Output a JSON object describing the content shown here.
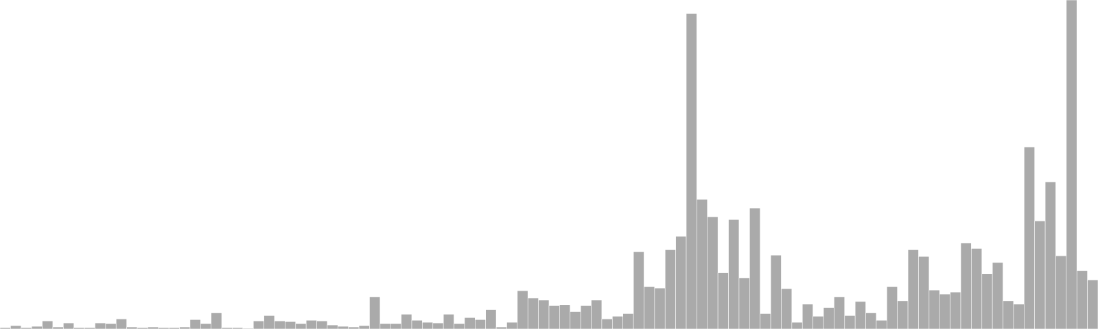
{
  "chart_data": {
    "type": "bar",
    "values": [
      2,
      5,
      2,
      4,
      12,
      3,
      9,
      2,
      2,
      9,
      8,
      15,
      3,
      2,
      3,
      2,
      2,
      3,
      14,
      8,
      24,
      2,
      2,
      1,
      12,
      20,
      12,
      11,
      8,
      13,
      12,
      6,
      4,
      3,
      5,
      48,
      8,
      8,
      22,
      13,
      10,
      9,
      22,
      8,
      17,
      14,
      29,
      3,
      10,
      57,
      46,
      43,
      35,
      36,
      26,
      35,
      43,
      15,
      19,
      23,
      115,
      63,
      61,
      118,
      138,
      470,
      193,
      167,
      84,
      163,
      76,
      180,
      23,
      110,
      60,
      10,
      37,
      19,
      32,
      48,
      20,
      41,
      24,
      13,
      63,
      42,
      118,
      108,
      58,
      52,
      55,
      128,
      120,
      82,
      99,
      42,
      37,
      271,
      161,
      219,
      109,
      490,
      87,
      73
    ],
    "ylim": [
      0,
      490
    ],
    "color": "#aaaaaa",
    "grid": false
  }
}
